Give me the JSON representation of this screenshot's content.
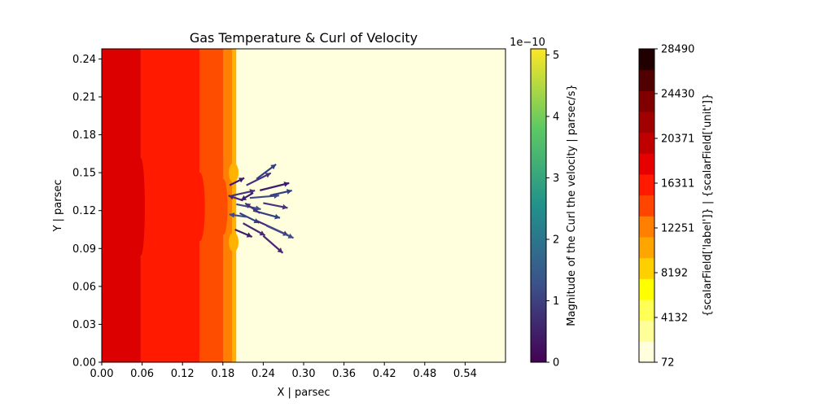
{
  "chart_data": {
    "type": "heatmap",
    "title": "Gas Temperature & Curl of Velocity",
    "xlabel": "X | parsec",
    "ylabel": "Y | parsec",
    "xlim": [
      0.0,
      0.6
    ],
    "ylim": [
      0.0,
      0.248
    ],
    "x_ticks": [
      "0.00",
      "0.06",
      "0.12",
      "0.18",
      "0.24",
      "0.30",
      "0.36",
      "0.42",
      "0.48",
      "0.54"
    ],
    "x_tick_values": [
      0.0,
      0.06,
      0.12,
      0.18,
      0.24,
      0.3,
      0.36,
      0.42,
      0.48,
      0.54
    ],
    "y_ticks": [
      "0.00",
      "0.03",
      "0.06",
      "0.09",
      "0.12",
      "0.15",
      "0.18",
      "0.21",
      "0.24"
    ],
    "y_tick_values": [
      0.0,
      0.03,
      0.06,
      0.09,
      0.12,
      0.15,
      0.18,
      0.21,
      0.24
    ],
    "temperature_bands": [
      {
        "x_start": 0.0,
        "x_end": 0.058,
        "color": "#dd0000"
      },
      {
        "x_start": 0.058,
        "x_end": 0.146,
        "color": "#ff1a00"
      },
      {
        "x_start": 0.146,
        "x_end": 0.181,
        "color": "#ff4d00"
      },
      {
        "x_start": 0.181,
        "x_end": 0.194,
        "color": "#ff8000"
      },
      {
        "x_start": 0.194,
        "x_end": 0.2,
        "color": "#ffb300"
      },
      {
        "x_start": 0.2,
        "x_end": 0.6,
        "color": "#ffffdd"
      }
    ],
    "curl_colorbar": {
      "label": "Magnitude of the Curl the velocity | parsec/s}",
      "scale_label": "1e−10",
      "ticks": [
        "0",
        "1",
        "2",
        "3",
        "4",
        "5"
      ],
      "tick_values": [
        0,
        1,
        2,
        3,
        4,
        5
      ],
      "range": [
        0,
        5.1
      ],
      "colormap": [
        "#440154",
        "#3b528b",
        "#21918c",
        "#5ec962",
        "#fde725"
      ]
    },
    "scalar_colorbar": {
      "label": "{scalarField['label']} | {scalarField['unit']}",
      "ticks": [
        "72",
        "4132",
        "8192",
        "12251",
        "16311",
        "20371",
        "24430",
        "28490"
      ],
      "tick_values": [
        72,
        4132,
        8192,
        12251,
        16311,
        20371,
        24430,
        28490
      ],
      "range": [
        72,
        28490
      ],
      "levels": [
        "#ffffdd",
        "#ffff99",
        "#ffff55",
        "#ffff00",
        "#ffd000",
        "#ffa500",
        "#ff7f00",
        "#ff4500",
        "#ff1a00",
        "#e60000",
        "#c00000",
        "#a00000",
        "#800000",
        "#500000",
        "#200000"
      ]
    },
    "vectors": [
      {
        "x": 0.19,
        "y": 0.14,
        "u": 0.012,
        "v": 0.006
      },
      {
        "x": 0.195,
        "y": 0.132,
        "u": 0.018,
        "v": 0.004
      },
      {
        "x": 0.2,
        "y": 0.125,
        "u": 0.02,
        "v": -0.004
      },
      {
        "x": 0.205,
        "y": 0.118,
        "u": 0.016,
        "v": -0.008
      },
      {
        "x": 0.21,
        "y": 0.11,
        "u": 0.018,
        "v": -0.01
      },
      {
        "x": 0.198,
        "y": 0.105,
        "u": 0.014,
        "v": -0.006
      },
      {
        "x": 0.215,
        "y": 0.14,
        "u": 0.02,
        "v": 0.01
      },
      {
        "x": 0.22,
        "y": 0.13,
        "u": 0.024,
        "v": 0.002
      },
      {
        "x": 0.225,
        "y": 0.12,
        "u": 0.022,
        "v": -0.006
      },
      {
        "x": 0.23,
        "y": 0.112,
        "u": 0.026,
        "v": -0.012
      },
      {
        "x": 0.235,
        "y": 0.136,
        "u": 0.024,
        "v": 0.006
      },
      {
        "x": 0.24,
        "y": 0.126,
        "u": 0.02,
        "v": -0.004
      },
      {
        "x": 0.245,
        "y": 0.108,
        "u": 0.022,
        "v": -0.01
      },
      {
        "x": 0.25,
        "y": 0.132,
        "u": 0.018,
        "v": 0.004
      },
      {
        "x": 0.21,
        "y": 0.128,
        "u": -0.012,
        "v": 0.004
      },
      {
        "x": 0.225,
        "y": 0.134,
        "u": -0.01,
        "v": -0.006
      },
      {
        "x": 0.235,
        "y": 0.118,
        "u": -0.012,
        "v": 0.008
      },
      {
        "x": 0.215,
        "y": 0.115,
        "u": -0.014,
        "v": 0.002
      },
      {
        "x": 0.23,
        "y": 0.145,
        "u": 0.016,
        "v": 0.012
      },
      {
        "x": 0.24,
        "y": 0.1,
        "u": 0.016,
        "v": -0.014
      }
    ]
  }
}
